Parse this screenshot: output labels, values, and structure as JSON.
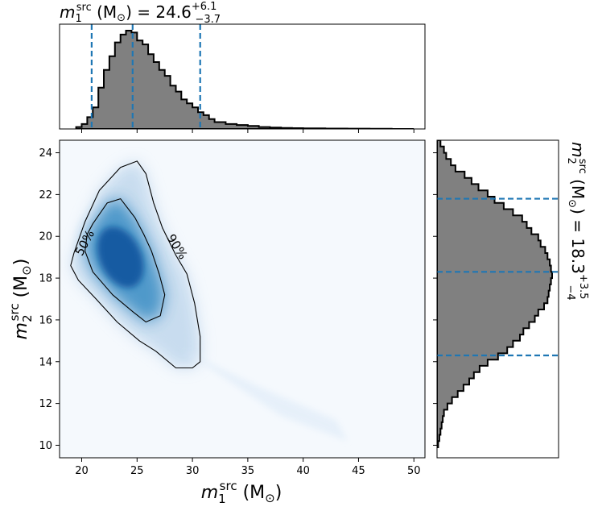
{
  "chart_data": {
    "type": "scatter",
    "kind": "corner-plot",
    "joint": {
      "xlabel": "m1src (M⊙)",
      "ylabel": "m2src (M⊙)",
      "xlim": [
        18,
        51
      ],
      "ylim": [
        9.4,
        24.6
      ],
      "xticks": [
        20,
        25,
        30,
        35,
        40,
        45,
        50
      ],
      "yticks": [
        10,
        12,
        14,
        16,
        18,
        20,
        22,
        24
      ],
      "colormap": "Blues",
      "density_peak": [
        23.5,
        19.0
      ],
      "contours": [
        {
          "label": "50%",
          "points": [
            [
              21.0,
              20.6
            ],
            [
              22.3,
              21.6
            ],
            [
              23.5,
              21.8
            ],
            [
              24.8,
              20.9
            ],
            [
              25.6,
              20.1
            ],
            [
              26.3,
              19.3
            ],
            [
              27.0,
              18.2
            ],
            [
              27.5,
              17.2
            ],
            [
              27.1,
              16.2
            ],
            [
              25.8,
              15.9
            ],
            [
              24.6,
              16.4
            ],
            [
              22.8,
              17.2
            ],
            [
              21.0,
              18.3
            ],
            [
              20.3,
              19.3
            ],
            [
              20.5,
              20.1
            ]
          ]
        },
        {
          "label": "90%",
          "points": [
            [
              19.3,
              19.2
            ],
            [
              20.3,
              20.7
            ],
            [
              21.6,
              22.2
            ],
            [
              23.5,
              23.3
            ],
            [
              25.0,
              23.6
            ],
            [
              25.8,
              23.0
            ],
            [
              26.5,
              21.6
            ],
            [
              27.3,
              20.4
            ],
            [
              28.5,
              19.1
            ],
            [
              29.5,
              18.2
            ],
            [
              30.2,
              16.8
            ],
            [
              30.7,
              15.2
            ],
            [
              30.7,
              14.0
            ],
            [
              30.0,
              13.7
            ],
            [
              28.5,
              13.7
            ],
            [
              26.7,
              14.5
            ],
            [
              25.2,
              15.0
            ],
            [
              23.2,
              15.9
            ],
            [
              21.3,
              17.0
            ],
            [
              19.7,
              17.9
            ],
            [
              19.0,
              18.6
            ]
          ]
        }
      ]
    },
    "marginal_x": {
      "title": "m1src (M⊙) = 24.6+6.1−3.7",
      "median": 24.6,
      "plus": "6.1",
      "minus": "3.7",
      "lines": [
        20.9,
        24.6,
        30.7
      ],
      "bins": [
        19.5,
        20.0,
        20.5,
        21.0,
        21.5,
        22.0,
        22.5,
        23.0,
        23.5,
        24.0,
        24.5,
        25.0,
        25.5,
        26.0,
        26.5,
        27.0,
        27.5,
        28.0,
        28.5,
        29.0,
        29.5,
        30.0,
        30.5,
        31.0,
        31.5,
        32.0,
        33.0,
        34.0,
        35.0,
        36.0,
        37.0,
        38.0,
        39.0,
        40.0,
        42.0,
        44.0,
        46.0,
        48.0,
        50.0
      ],
      "counts": [
        0.02,
        0.05,
        0.12,
        0.22,
        0.42,
        0.6,
        0.74,
        0.88,
        0.96,
        1.0,
        0.98,
        0.9,
        0.86,
        0.76,
        0.68,
        0.6,
        0.54,
        0.44,
        0.38,
        0.3,
        0.26,
        0.22,
        0.17,
        0.14,
        0.1,
        0.07,
        0.05,
        0.04,
        0.03,
        0.02,
        0.015,
        0.01,
        0.008,
        0.006,
        0.004,
        0.003,
        0.002,
        0.0
      ]
    },
    "marginal_y": {
      "title": "m2src (M⊙) = 18.3+3.5−4",
      "median": 18.3,
      "plus": "3.5",
      "minus": "4",
      "lines": [
        14.3,
        18.3,
        21.8
      ],
      "bins": [
        9.9,
        10.2,
        10.5,
        10.8,
        11.1,
        11.4,
        11.7,
        12.0,
        12.3,
        12.6,
        12.9,
        13.2,
        13.5,
        13.8,
        14.1,
        14.4,
        14.7,
        15.0,
        15.3,
        15.6,
        15.9,
        16.2,
        16.5,
        16.8,
        17.1,
        17.4,
        17.7,
        18.0,
        18.3,
        18.6,
        18.9,
        19.2,
        19.5,
        19.8,
        20.1,
        20.4,
        20.7,
        21.0,
        21.3,
        21.6,
        21.9,
        22.2,
        22.5,
        22.8,
        23.1,
        23.4,
        23.7,
        24.0,
        24.3,
        24.6
      ],
      "counts": [
        0.01,
        0.02,
        0.03,
        0.04,
        0.05,
        0.06,
        0.09,
        0.13,
        0.18,
        0.23,
        0.28,
        0.32,
        0.37,
        0.44,
        0.53,
        0.61,
        0.66,
        0.72,
        0.75,
        0.8,
        0.85,
        0.88,
        0.93,
        0.96,
        0.97,
        0.98,
        0.99,
        1.0,
        0.99,
        0.98,
        0.96,
        0.94,
        0.9,
        0.88,
        0.82,
        0.78,
        0.74,
        0.66,
        0.58,
        0.5,
        0.44,
        0.36,
        0.3,
        0.24,
        0.16,
        0.12,
        0.08,
        0.06,
        0.03
      ]
    },
    "colors": {
      "hist_fill": "#808080",
      "hist_edge": "#000000",
      "quantile_line": "#1f77b4"
    }
  }
}
